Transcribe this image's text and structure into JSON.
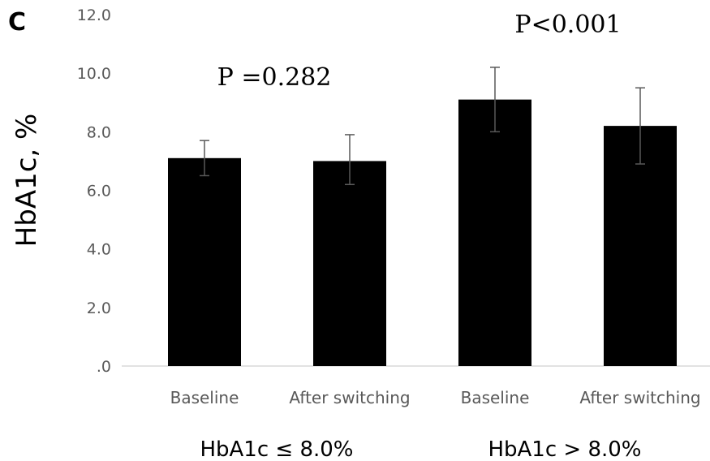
{
  "chart_data": {
    "type": "bar",
    "panel_label": "C",
    "ylabel": "HbA1c, %",
    "ylim": [
      0,
      12
    ],
    "yticks": [
      {
        "value": 0,
        "label": ".0"
      },
      {
        "value": 2,
        "label": "2.0"
      },
      {
        "value": 4,
        "label": "4.0"
      },
      {
        "value": 6,
        "label": "6.0"
      },
      {
        "value": 8,
        "label": "8.0"
      },
      {
        "value": 10,
        "label": "10.0"
      },
      {
        "value": 12,
        "label": "12.0"
      }
    ],
    "categories": [
      "Baseline",
      "After switching",
      "Baseline",
      "After switching"
    ],
    "values": [
      7.1,
      7.0,
      9.1,
      8.2
    ],
    "error_low": [
      6.5,
      6.2,
      8.0,
      6.9
    ],
    "error_high": [
      7.7,
      7.9,
      10.2,
      9.5
    ],
    "groups": [
      {
        "label": "HbA1c ≤ 8.0%",
        "p_value": "P =0.282"
      },
      {
        "label": "HbA1c > 8.0%",
        "p_value": "P<0.001"
      }
    ],
    "bar_color": "#000000",
    "error_color": "#595959",
    "axis_color": "#d9d9d9",
    "grid": false
  }
}
